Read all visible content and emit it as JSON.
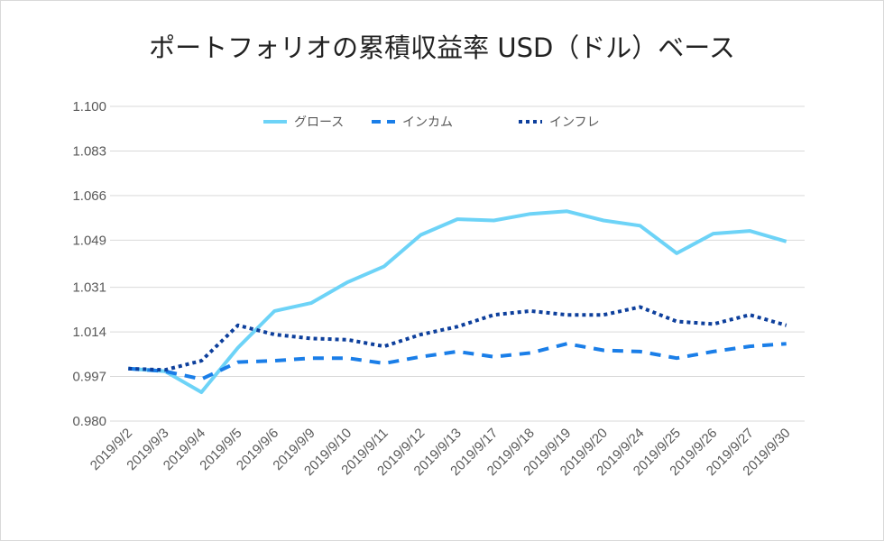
{
  "chart_data": {
    "type": "line",
    "title": "ポートフォリオの累積収益率 USD（ドル）ベース",
    "categories": [
      "2019/9/2",
      "2019/9/3",
      "2019/9/4",
      "2019/9/5",
      "2019/9/6",
      "2019/9/9",
      "2019/9/10",
      "2019/9/11",
      "2019/9/12",
      "2019/9/13",
      "2019/9/17",
      "2019/9/18",
      "2019/9/19",
      "2019/9/20",
      "2019/9/24",
      "2019/9/25",
      "2019/9/26",
      "2019/9/27",
      "2019/9/30"
    ],
    "y_ticks": [
      "1.100",
      "1.083",
      "1.066",
      "1.049",
      "1.031",
      "1.014",
      "0.997",
      "0.980"
    ],
    "ylim": [
      0.98,
      1.1
    ],
    "grid": true,
    "legend_position": "top-center",
    "series": [
      {
        "name": "グロース",
        "style": "solid",
        "color": "#6dd3f7",
        "values": [
          1.0,
          0.999,
          0.991,
          1.008,
          1.022,
          1.025,
          1.033,
          1.039,
          1.051,
          1.057,
          1.0565,
          1.059,
          1.06,
          1.0565,
          1.0545,
          1.044,
          1.0515,
          1.0525,
          1.0485
        ]
      },
      {
        "name": "インカム",
        "style": "dashed",
        "color": "#1a7ee8",
        "values": [
          1.0,
          0.999,
          0.996,
          1.0025,
          1.003,
          1.004,
          1.004,
          1.002,
          1.0045,
          1.0065,
          1.0045,
          1.006,
          1.0095,
          1.007,
          1.0065,
          1.004,
          1.0065,
          1.0085,
          1.0095
        ]
      },
      {
        "name": "インフレ",
        "style": "dotted",
        "color": "#0d3f9c",
        "values": [
          1.0,
          0.9995,
          1.003,
          1.0165,
          1.013,
          1.0115,
          1.011,
          1.0085,
          1.013,
          1.016,
          1.0205,
          1.022,
          1.0205,
          1.0205,
          1.0235,
          1.018,
          1.017,
          1.0205,
          1.0165
        ]
      }
    ]
  }
}
